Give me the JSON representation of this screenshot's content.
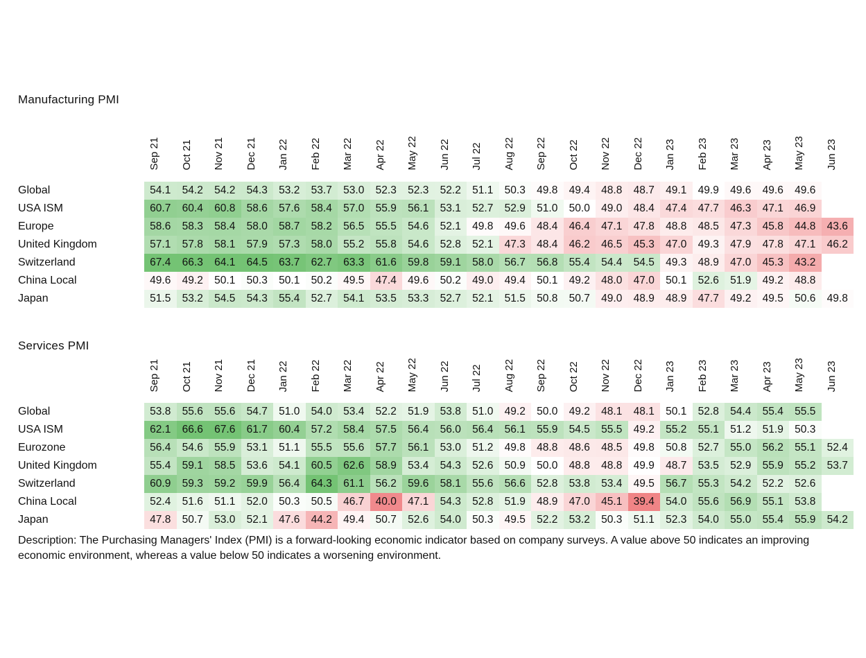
{
  "months": [
    "Sep 21",
    "Oct 21",
    "Nov 21",
    "Dec 21",
    "Jan 22",
    "Feb 22",
    "Mar 22",
    "Apr 22",
    "May 22",
    "Jun 22",
    "Jul 22",
    "Aug 22",
    "Sep 22",
    "Oct 22",
    "Nov 22",
    "Dec 22",
    "Jan 23",
    "Feb 23",
    "Mar 23",
    "Apr 23",
    "May 23",
    "Jun 23"
  ],
  "colors": {
    "positive": "#5cb85c",
    "negative": "#e8474b",
    "neutral": "#ffffff"
  },
  "chart_data": [
    {
      "type": "heatmap",
      "title": "Manufacturing PMI",
      "x": [
        "Sep 21",
        "Oct 21",
        "Nov 21",
        "Dec 21",
        "Jan 22",
        "Feb 22",
        "Mar 22",
        "Apr 22",
        "May 22",
        "Jun 22",
        "Jul 22",
        "Aug 22",
        "Sep 22",
        "Oct 22",
        "Nov 22",
        "Dec 22",
        "Jan 23",
        "Feb 23",
        "Mar 23",
        "Apr 23",
        "May 23",
        "Jun 23"
      ],
      "series": [
        {
          "name": "Global",
          "values": [
            54.1,
            54.2,
            54.2,
            54.3,
            53.2,
            53.7,
            53.0,
            52.3,
            52.3,
            52.2,
            51.1,
            50.3,
            49.8,
            49.4,
            48.8,
            48.7,
            49.1,
            49.9,
            49.6,
            49.6,
            49.6,
            null
          ]
        },
        {
          "name": "USA ISM",
          "values": [
            60.7,
            60.4,
            60.8,
            58.6,
            57.6,
            58.4,
            57.0,
            55.9,
            56.1,
            53.1,
            52.7,
            52.9,
            51.0,
            50.0,
            49.0,
            48.4,
            47.4,
            47.7,
            46.3,
            47.1,
            46.9,
            null
          ]
        },
        {
          "name": "Europe",
          "values": [
            58.6,
            58.3,
            58.4,
            58.0,
            58.7,
            58.2,
            56.5,
            55.5,
            54.6,
            52.1,
            49.8,
            49.6,
            48.4,
            46.4,
            47.1,
            47.8,
            48.8,
            48.5,
            47.3,
            45.8,
            44.8,
            43.6
          ]
        },
        {
          "name": "United Kingdom",
          "values": [
            57.1,
            57.8,
            58.1,
            57.9,
            57.3,
            58.0,
            55.2,
            55.8,
            54.6,
            52.8,
            52.1,
            47.3,
            48.4,
            46.2,
            46.5,
            45.3,
            47.0,
            49.3,
            47.9,
            47.8,
            47.1,
            46.2
          ]
        },
        {
          "name": "Switzerland",
          "values": [
            67.4,
            66.3,
            64.1,
            64.5,
            63.7,
            62.7,
            63.3,
            61.6,
            59.8,
            59.1,
            58.0,
            56.7,
            56.8,
            55.4,
            54.4,
            54.5,
            49.3,
            48.9,
            47.0,
            45.3,
            43.2,
            null
          ]
        },
        {
          "name": "China Local",
          "values": [
            49.6,
            49.2,
            50.1,
            50.3,
            50.1,
            50.2,
            49.5,
            47.4,
            49.6,
            50.2,
            49.0,
            49.4,
            50.1,
            49.2,
            48.0,
            47.0,
            50.1,
            52.6,
            51.9,
            49.2,
            48.8,
            null
          ]
        },
        {
          "name": "Japan",
          "values": [
            51.5,
            53.2,
            54.5,
            54.3,
            55.4,
            52.7,
            54.1,
            53.5,
            53.3,
            52.7,
            52.1,
            51.5,
            50.8,
            50.7,
            49.0,
            48.9,
            48.9,
            47.7,
            49.2,
            49.5,
            50.6,
            49.8
          ]
        }
      ]
    },
    {
      "type": "heatmap",
      "title": "Services PMI",
      "x": [
        "Sep 21",
        "Oct 21",
        "Nov 21",
        "Dec 21",
        "Jan 22",
        "Feb 22",
        "Mar 22",
        "Apr 22",
        "May 22",
        "Jun 22",
        "Jul 22",
        "Aug 22",
        "Sep 22",
        "Oct 22",
        "Nov 22",
        "Dec 22",
        "Jan 23",
        "Feb 23",
        "Mar 23",
        "Apr 23",
        "May 23",
        "Jun 23"
      ],
      "series": [
        {
          "name": "Global",
          "values": [
            53.8,
            55.6,
            55.6,
            54.7,
            51.0,
            54.0,
            53.4,
            52.2,
            51.9,
            53.8,
            51.0,
            49.2,
            50.0,
            49.2,
            48.1,
            48.1,
            50.1,
            52.8,
            54.4,
            55.4,
            55.5,
            null
          ]
        },
        {
          "name": "USA ISM",
          "values": [
            62.1,
            66.6,
            67.6,
            61.7,
            60.4,
            57.2,
            58.4,
            57.5,
            56.4,
            56.0,
            56.4,
            56.1,
            55.9,
            54.5,
            55.5,
            49.2,
            55.2,
            55.1,
            51.2,
            51.9,
            50.3,
            null
          ]
        },
        {
          "name": "Eurozone",
          "values": [
            56.4,
            54.6,
            55.9,
            53.1,
            51.1,
            55.5,
            55.6,
            57.7,
            56.1,
            53.0,
            51.2,
            49.8,
            48.8,
            48.6,
            48.5,
            49.8,
            50.8,
            52.7,
            55.0,
            56.2,
            55.1,
            52.4
          ]
        },
        {
          "name": "United Kingdom",
          "values": [
            55.4,
            59.1,
            58.5,
            53.6,
            54.1,
            60.5,
            62.6,
            58.9,
            53.4,
            54.3,
            52.6,
            50.9,
            50.0,
            48.8,
            48.8,
            49.9,
            48.7,
            53.5,
            52.9,
            55.9,
            55.2,
            53.7
          ]
        },
        {
          "name": "Switzerland",
          "values": [
            60.9,
            59.3,
            59.2,
            59.9,
            56.4,
            64.3,
            61.1,
            56.2,
            59.6,
            58.1,
            55.6,
            56.6,
            52.8,
            53.8,
            53.4,
            49.5,
            56.7,
            55.3,
            54.2,
            52.2,
            52.6,
            null
          ]
        },
        {
          "name": "China Local",
          "values": [
            52.4,
            51.6,
            51.1,
            52.0,
            50.3,
            50.5,
            46.7,
            40.0,
            47.1,
            54.3,
            52.8,
            51.9,
            48.9,
            47.0,
            45.1,
            39.4,
            54.0,
            55.6,
            56.9,
            55.1,
            53.8,
            null
          ]
        },
        {
          "name": "Japan",
          "values": [
            47.8,
            50.7,
            53.0,
            52.1,
            47.6,
            44.2,
            49.4,
            50.7,
            52.6,
            54.0,
            50.3,
            49.5,
            52.2,
            53.2,
            50.3,
            51.1,
            52.3,
            54.0,
            55.0,
            55.4,
            55.9,
            54.2
          ]
        }
      ]
    }
  ],
  "description": "Description: The Purchasing Managers' Index (PMI) is a forward-looking economic indicator based on company surveys. A value above 50 indicates an improving economic environment, whereas a value below 50 indicates a worsening environment."
}
